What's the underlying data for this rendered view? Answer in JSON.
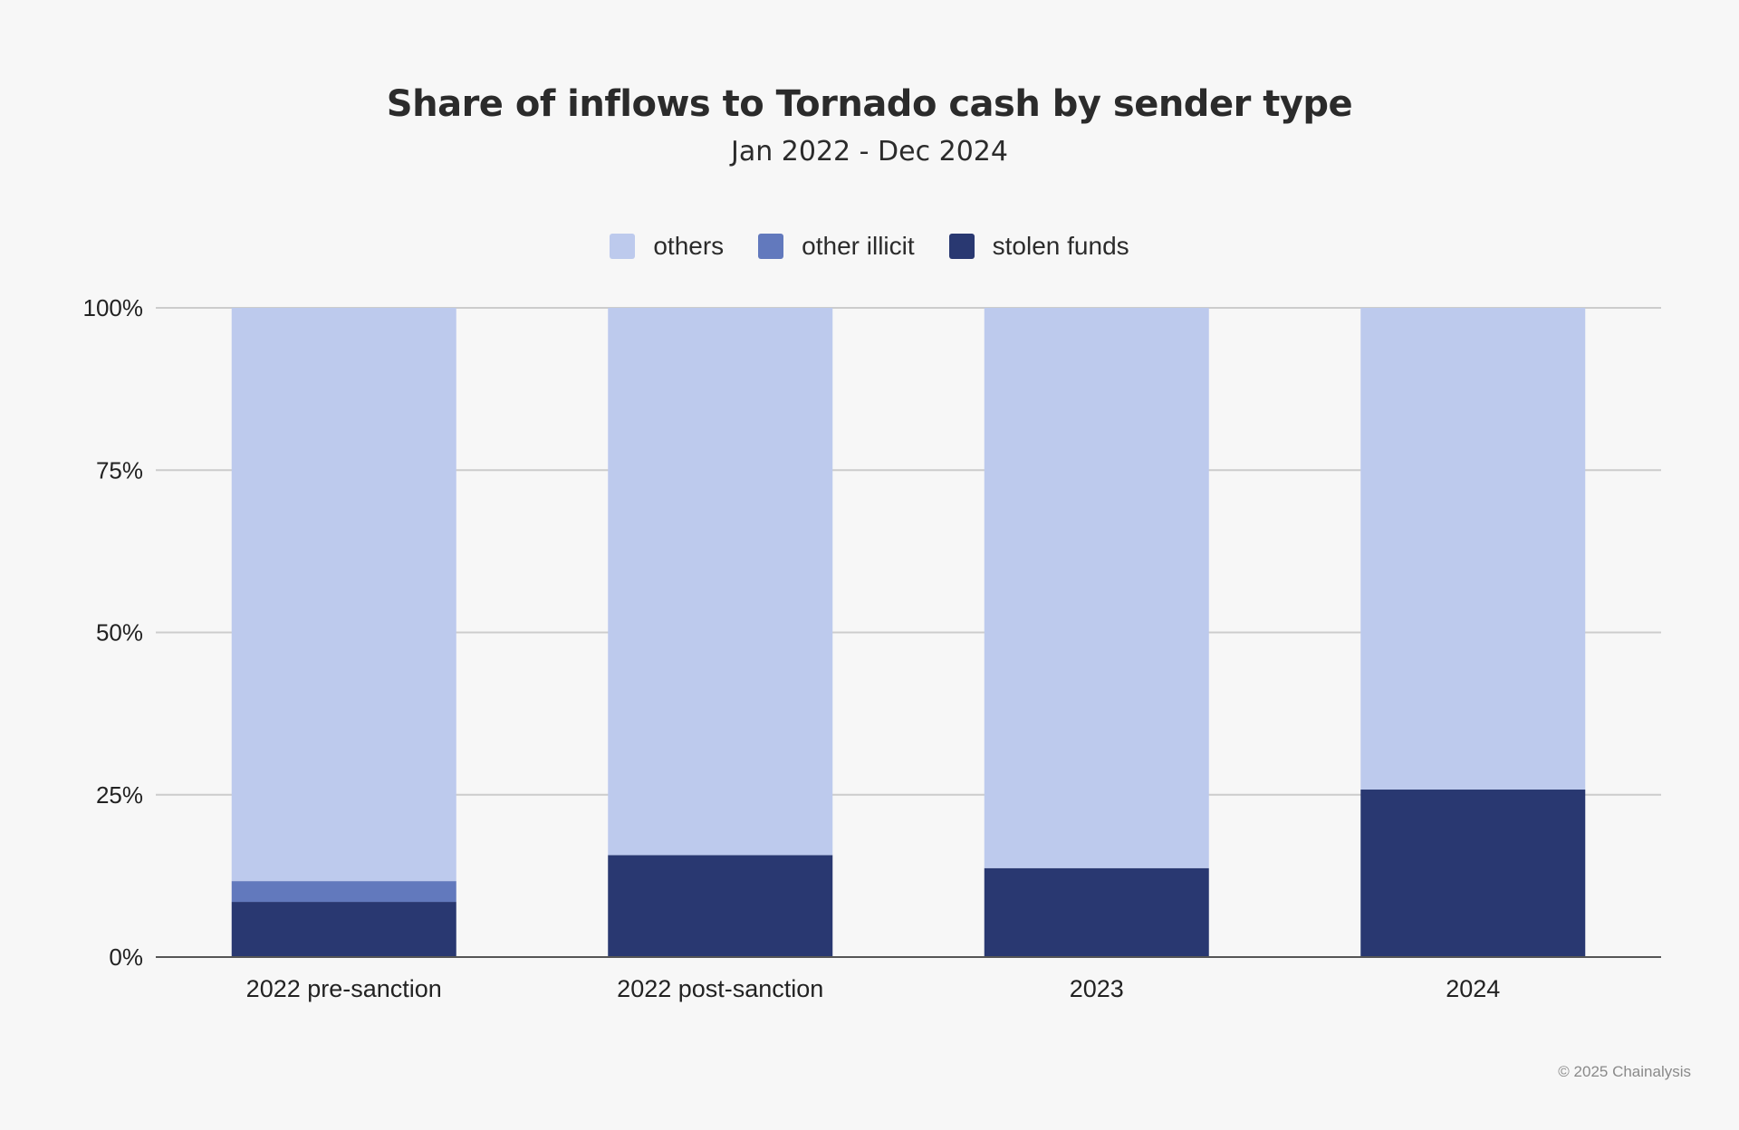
{
  "chart_data": {
    "type": "bar",
    "stacked": true,
    "title": "Share of inflows to Tornado cash by sender type",
    "subtitle": "Jan 2022 - Dec 2024",
    "categories": [
      "2022 pre-sanction",
      "2022 post-sanction",
      "2023",
      "2024"
    ],
    "series": [
      {
        "name": "stolen funds",
        "color": "#293871",
        "values": [
          8.5,
          15.7,
          13.7,
          25.8
        ]
      },
      {
        "name": "other illicit",
        "color": "#6279bd",
        "values": [
          3.2,
          0,
          0,
          0
        ]
      },
      {
        "name": "others",
        "color": "#bdcaed",
        "values": [
          88.3,
          84.3,
          86.3,
          74.2
        ]
      }
    ],
    "ylim": [
      0,
      100
    ],
    "yticks": [
      "0%",
      "25%",
      "50%",
      "75%",
      "100%"
    ],
    "ytick_values": [
      0,
      25,
      50,
      75,
      100
    ],
    "grid": true,
    "legend_position": "top"
  },
  "legend": [
    {
      "label": "others",
      "color": "#bdcaed"
    },
    {
      "label": "other illicit",
      "color": "#6279bd"
    },
    {
      "label": "stolen funds",
      "color": "#293871"
    }
  ],
  "footer": "© 2025 Chainalysis"
}
